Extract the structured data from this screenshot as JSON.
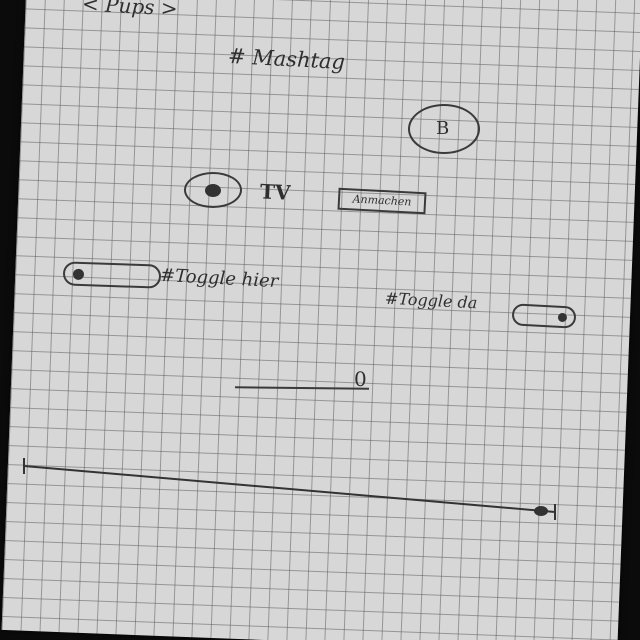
{
  "nav": {
    "back_label": "< Pups >"
  },
  "title": "# Mashtag",
  "b_button": {
    "label": "B"
  },
  "tv_row": {
    "label": "TV",
    "action_label": "Anmachen"
  },
  "toggle_left": {
    "label": "#Toggle hier",
    "state": "off"
  },
  "toggle_right": {
    "label": "#Toggle da",
    "state": "on"
  },
  "text_input": {
    "value": "",
    "end_marker": "0"
  }
}
